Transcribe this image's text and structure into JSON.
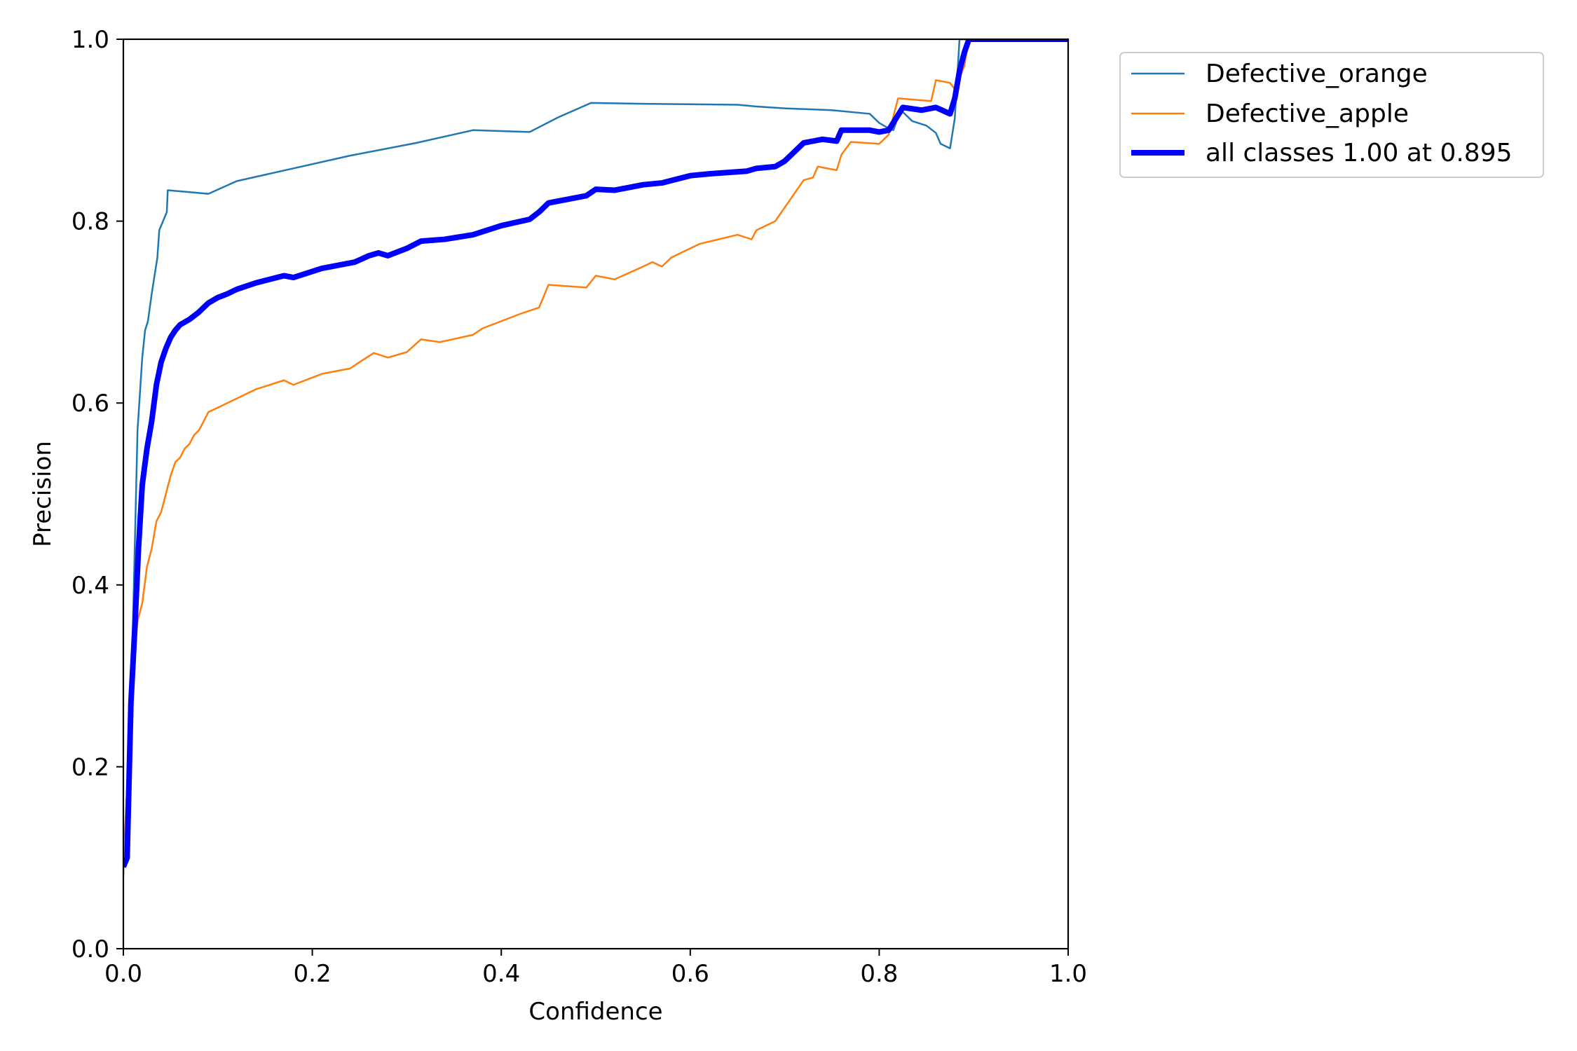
{
  "chart_data": {
    "type": "line",
    "title": "",
    "xlabel": "Confidence",
    "ylabel": "Precision",
    "xlim": [
      0.0,
      1.0
    ],
    "ylim": [
      0.0,
      1.0
    ],
    "xticks": [
      "0.0",
      "0.2",
      "0.4",
      "0.6",
      "0.8",
      "1.0"
    ],
    "yticks": [
      "0.0",
      "0.2",
      "0.4",
      "0.6",
      "0.8",
      "1.0"
    ],
    "grid": false,
    "legend_position": "outside-top-right",
    "series": [
      {
        "name": "Defective_orange",
        "color": "#1f77b4",
        "width": "thin",
        "points": [
          [
            0.0,
            0.09
          ],
          [
            0.005,
            0.2
          ],
          [
            0.01,
            0.35
          ],
          [
            0.015,
            0.57
          ],
          [
            0.02,
            0.65
          ],
          [
            0.023,
            0.68
          ],
          [
            0.026,
            0.69
          ],
          [
            0.03,
            0.72
          ],
          [
            0.033,
            0.74
          ],
          [
            0.036,
            0.76
          ],
          [
            0.038,
            0.79
          ],
          [
            0.042,
            0.8
          ],
          [
            0.046,
            0.81
          ],
          [
            0.047,
            0.834
          ],
          [
            0.09,
            0.83
          ],
          [
            0.12,
            0.844
          ],
          [
            0.18,
            0.858
          ],
          [
            0.24,
            0.872
          ],
          [
            0.31,
            0.886
          ],
          [
            0.37,
            0.9
          ],
          [
            0.43,
            0.898
          ],
          [
            0.46,
            0.914
          ],
          [
            0.495,
            0.93
          ],
          [
            0.55,
            0.929
          ],
          [
            0.65,
            0.928
          ],
          [
            0.67,
            0.926
          ],
          [
            0.7,
            0.924
          ],
          [
            0.75,
            0.922
          ],
          [
            0.79,
            0.918
          ],
          [
            0.8,
            0.908
          ],
          [
            0.81,
            0.902
          ],
          [
            0.815,
            0.9
          ],
          [
            0.82,
            0.915
          ],
          [
            0.825,
            0.92
          ],
          [
            0.835,
            0.91
          ],
          [
            0.85,
            0.905
          ],
          [
            0.86,
            0.897
          ],
          [
            0.865,
            0.885
          ],
          [
            0.875,
            0.88
          ],
          [
            0.88,
            0.913
          ],
          [
            0.885,
            1.0
          ],
          [
            1.0,
            1.0
          ]
        ]
      },
      {
        "name": "Defective_apple",
        "color": "#ff7f0e",
        "width": "thin",
        "points": [
          [
            0.0,
            0.08
          ],
          [
            0.005,
            0.2
          ],
          [
            0.01,
            0.3
          ],
          [
            0.015,
            0.36
          ],
          [
            0.02,
            0.38
          ],
          [
            0.025,
            0.42
          ],
          [
            0.03,
            0.44
          ],
          [
            0.035,
            0.47
          ],
          [
            0.04,
            0.48
          ],
          [
            0.045,
            0.5
          ],
          [
            0.05,
            0.52
          ],
          [
            0.055,
            0.535
          ],
          [
            0.06,
            0.54
          ],
          [
            0.065,
            0.55
          ],
          [
            0.07,
            0.555
          ],
          [
            0.075,
            0.565
          ],
          [
            0.08,
            0.57
          ],
          [
            0.09,
            0.59
          ],
          [
            0.1,
            0.595
          ],
          [
            0.11,
            0.6
          ],
          [
            0.12,
            0.605
          ],
          [
            0.14,
            0.615
          ],
          [
            0.17,
            0.625
          ],
          [
            0.18,
            0.62
          ],
          [
            0.21,
            0.632
          ],
          [
            0.24,
            0.638
          ],
          [
            0.25,
            0.645
          ],
          [
            0.265,
            0.655
          ],
          [
            0.28,
            0.65
          ],
          [
            0.3,
            0.656
          ],
          [
            0.315,
            0.67
          ],
          [
            0.335,
            0.667
          ],
          [
            0.37,
            0.675
          ],
          [
            0.38,
            0.682
          ],
          [
            0.4,
            0.69
          ],
          [
            0.42,
            0.698
          ],
          [
            0.44,
            0.705
          ],
          [
            0.45,
            0.73
          ],
          [
            0.49,
            0.727
          ],
          [
            0.5,
            0.74
          ],
          [
            0.52,
            0.736
          ],
          [
            0.55,
            0.75
          ],
          [
            0.56,
            0.755
          ],
          [
            0.57,
            0.75
          ],
          [
            0.58,
            0.76
          ],
          [
            0.6,
            0.77
          ],
          [
            0.61,
            0.775
          ],
          [
            0.65,
            0.785
          ],
          [
            0.665,
            0.78
          ],
          [
            0.67,
            0.79
          ],
          [
            0.69,
            0.8
          ],
          [
            0.7,
            0.815
          ],
          [
            0.72,
            0.845
          ],
          [
            0.73,
            0.848
          ],
          [
            0.735,
            0.86
          ],
          [
            0.755,
            0.856
          ],
          [
            0.76,
            0.873
          ],
          [
            0.77,
            0.887
          ],
          [
            0.8,
            0.885
          ],
          [
            0.81,
            0.895
          ],
          [
            0.82,
            0.935
          ],
          [
            0.855,
            0.932
          ],
          [
            0.86,
            0.955
          ],
          [
            0.875,
            0.952
          ],
          [
            0.88,
            0.945
          ],
          [
            0.89,
            0.97
          ],
          [
            0.895,
            1.0
          ],
          [
            1.0,
            1.0
          ]
        ]
      },
      {
        "name": "all classes 1.00 at 0.895",
        "color": "#0000ff",
        "width": "thick",
        "points": [
          [
            0.0,
            0.09
          ],
          [
            0.004,
            0.1
          ],
          [
            0.008,
            0.27
          ],
          [
            0.012,
            0.35
          ],
          [
            0.016,
            0.44
          ],
          [
            0.02,
            0.51
          ],
          [
            0.025,
            0.55
          ],
          [
            0.03,
            0.58
          ],
          [
            0.035,
            0.62
          ],
          [
            0.04,
            0.645
          ],
          [
            0.045,
            0.66
          ],
          [
            0.05,
            0.672
          ],
          [
            0.055,
            0.68
          ],
          [
            0.06,
            0.686
          ],
          [
            0.07,
            0.692
          ],
          [
            0.08,
            0.7
          ],
          [
            0.09,
            0.71
          ],
          [
            0.1,
            0.716
          ],
          [
            0.11,
            0.72
          ],
          [
            0.12,
            0.725
          ],
          [
            0.14,
            0.732
          ],
          [
            0.17,
            0.74
          ],
          [
            0.18,
            0.738
          ],
          [
            0.21,
            0.748
          ],
          [
            0.245,
            0.755
          ],
          [
            0.26,
            0.762
          ],
          [
            0.27,
            0.765
          ],
          [
            0.28,
            0.762
          ],
          [
            0.3,
            0.77
          ],
          [
            0.315,
            0.778
          ],
          [
            0.34,
            0.78
          ],
          [
            0.37,
            0.785
          ],
          [
            0.4,
            0.795
          ],
          [
            0.43,
            0.802
          ],
          [
            0.44,
            0.81
          ],
          [
            0.45,
            0.82
          ],
          [
            0.49,
            0.828
          ],
          [
            0.5,
            0.835
          ],
          [
            0.52,
            0.834
          ],
          [
            0.55,
            0.84
          ],
          [
            0.57,
            0.842
          ],
          [
            0.6,
            0.85
          ],
          [
            0.62,
            0.852
          ],
          [
            0.66,
            0.855
          ],
          [
            0.67,
            0.858
          ],
          [
            0.69,
            0.86
          ],
          [
            0.7,
            0.866
          ],
          [
            0.72,
            0.886
          ],
          [
            0.73,
            0.888
          ],
          [
            0.74,
            0.89
          ],
          [
            0.755,
            0.888
          ],
          [
            0.76,
            0.9
          ],
          [
            0.79,
            0.9
          ],
          [
            0.8,
            0.898
          ],
          [
            0.81,
            0.9
          ],
          [
            0.825,
            0.925
          ],
          [
            0.845,
            0.922
          ],
          [
            0.86,
            0.925
          ],
          [
            0.875,
            0.918
          ],
          [
            0.88,
            0.935
          ],
          [
            0.885,
            0.965
          ],
          [
            0.89,
            0.985
          ],
          [
            0.895,
            1.0
          ],
          [
            1.0,
            1.0
          ]
        ]
      }
    ]
  }
}
